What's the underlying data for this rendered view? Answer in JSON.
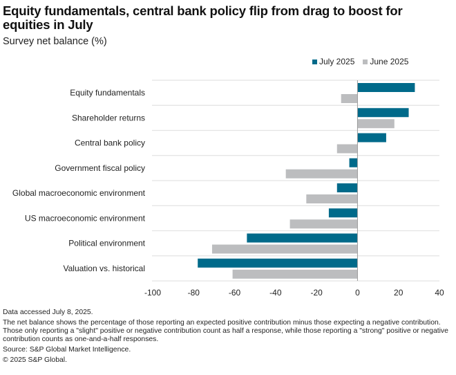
{
  "chart_data": {
    "type": "bar",
    "orientation": "horizontal",
    "title": "Equity fundamentals, central bank policy flip from drag to boost for equities in July",
    "subtitle": "Survey net balance (%)",
    "xlabel": "",
    "ylabel": "",
    "categories": [
      "Equity fundamentals",
      "Shareholder returns",
      "Central bank policy",
      "Government fiscal policy",
      "Global macroeconomic environment",
      "US macroeconomic environment",
      "Political environment",
      "Valuation vs. historical"
    ],
    "series": [
      {
        "name": "July 2025",
        "color": "#006a8a",
        "values": [
          28,
          25,
          14,
          -4,
          -10,
          -14,
          -54,
          -78
        ]
      },
      {
        "name": "June 2025",
        "color": "#bcbdbf",
        "values": [
          -8,
          18,
          -10,
          -35,
          -25,
          -33,
          -71,
          -61
        ]
      }
    ],
    "xlim": [
      -100,
      40
    ],
    "xticks": [
      -100,
      -80,
      -60,
      -40,
      -20,
      0,
      20,
      40
    ],
    "xtick_labels": [
      "-100",
      "-80",
      "-60",
      "-40",
      "-20",
      "0",
      "20",
      "40"
    ],
    "grid": "horizontal category separators",
    "legend_position": "top-right"
  },
  "legend": [
    {
      "label": "July 2025",
      "color": "#006a8a"
    },
    {
      "label": "June 2025",
      "color": "#bcbdbf"
    }
  ],
  "footer": {
    "accessed": "Data accessed July 8, 2025.",
    "note": "The net balance shows the percentage of those reporting an expected positive contribution minus those expecting a negative contribution. Those only reporting a \"slight\" positive or negative contribution count as half a response, while those reporting a \"strong\" positive or negative contribution counts as one-and-a-half responses.",
    "source": "Source: S&P Global Market Intelligence.",
    "copyright": "© 2025 S&P Global."
  }
}
